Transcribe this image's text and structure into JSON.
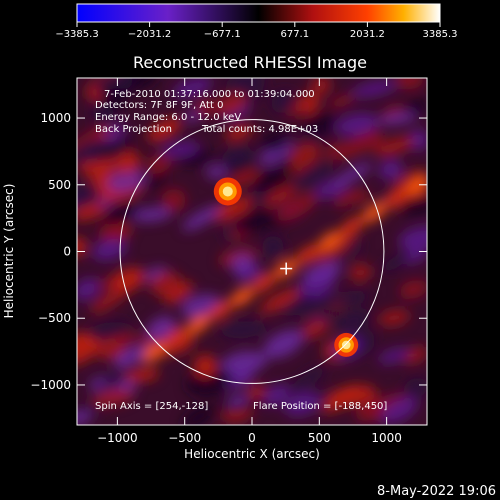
{
  "chart_data": {
    "type": "heatmap",
    "title": "Reconstructed RHESSI Image",
    "xlabel": "Heliocentric X (arcsec)",
    "ylabel": "Heliocentric Y (arcsec)",
    "xlim": [
      -1300,
      1300
    ],
    "ylim": [
      -1300,
      1300
    ],
    "x_ticks": [
      -1000,
      -500,
      0,
      500,
      1000
    ],
    "y_ticks": [
      -1000,
      -500,
      0,
      500,
      1000
    ],
    "colorbar": {
      "min": -3385.3,
      "max": 3385.3,
      "ticks": [
        "−3385.3",
        "−2031.2",
        "−677.1",
        "677.1",
        "2031.2",
        "3385.3"
      ],
      "tick_values": [
        -3385.3,
        -2031.2,
        -677.1,
        677.1,
        2031.2,
        3385.3
      ]
    },
    "info_lines": [
      "7-Feb-2010 01:37:16.000 to 01:39:04.000",
      "Detectors: 7F 8F 9F, Att 0",
      "Energy Range: 6.0 - 12.0 keV",
      "Back Projection"
    ],
    "total_counts": "Total counts: 4.98E+03",
    "spin_axis": "Spin Axis = [254,-128]",
    "flare_position": "Flare Position = [-188,450]",
    "solar_disk_radius": 980,
    "marker_position": [
      254,
      -128
    ],
    "sources": [
      {
        "x": -180,
        "y": 450,
        "value": 3385
      },
      {
        "x": 700,
        "y": -700,
        "value": 2900
      }
    ]
  },
  "footer": {
    "date": "8-May-2022 19:06"
  }
}
